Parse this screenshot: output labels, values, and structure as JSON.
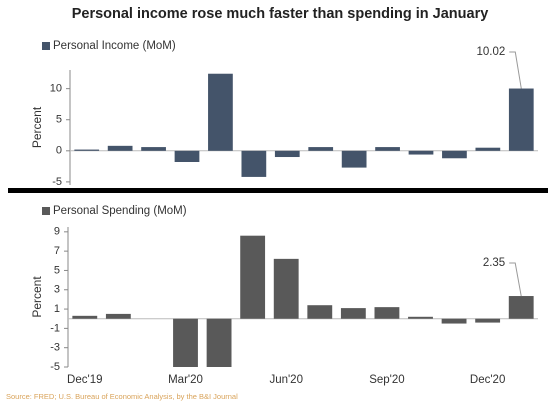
{
  "title": "Personal income rose much faster than spending in January",
  "source": "Source: FRED; U.S. Bureau of Economic Analysis, by the B&I Journal",
  "chart_data": [
    {
      "type": "bar",
      "y_label": "Percent",
      "series": [
        {
          "name": "Personal Income (MoM)",
          "color": "#44546a",
          "values": [
            0.2,
            0.8,
            0.6,
            -1.8,
            12.4,
            -4.2,
            -1.0,
            0.6,
            -2.7,
            0.6,
            -0.6,
            -1.2,
            0.5,
            10.02
          ]
        }
      ],
      "ylim": [
        -5.5,
        13
      ],
      "yticks": [
        -5,
        0,
        5,
        10
      ],
      "value_label_index": 13
    },
    {
      "type": "bar",
      "y_label": "Percent",
      "categories": [
        "Dec'19",
        null,
        null,
        "Mar'20",
        null,
        null,
        "Jun'20",
        null,
        null,
        "Sep'20",
        null,
        null,
        "Dec'20",
        null
      ],
      "series": [
        {
          "name": "Personal Spending (MoM)",
          "color": "#595959",
          "values": [
            0.3,
            0.5,
            0.0,
            -5.0,
            -5.0,
            8.6,
            6.2,
            1.4,
            1.1,
            1.2,
            0.2,
            -0.5,
            -0.4,
            2.35
          ]
        }
      ],
      "ylim": [
        -5,
        9.5
      ],
      "yticks": [
        -5,
        -3,
        -1,
        1,
        3,
        5,
        7,
        9
      ],
      "value_label_index": 13
    }
  ]
}
